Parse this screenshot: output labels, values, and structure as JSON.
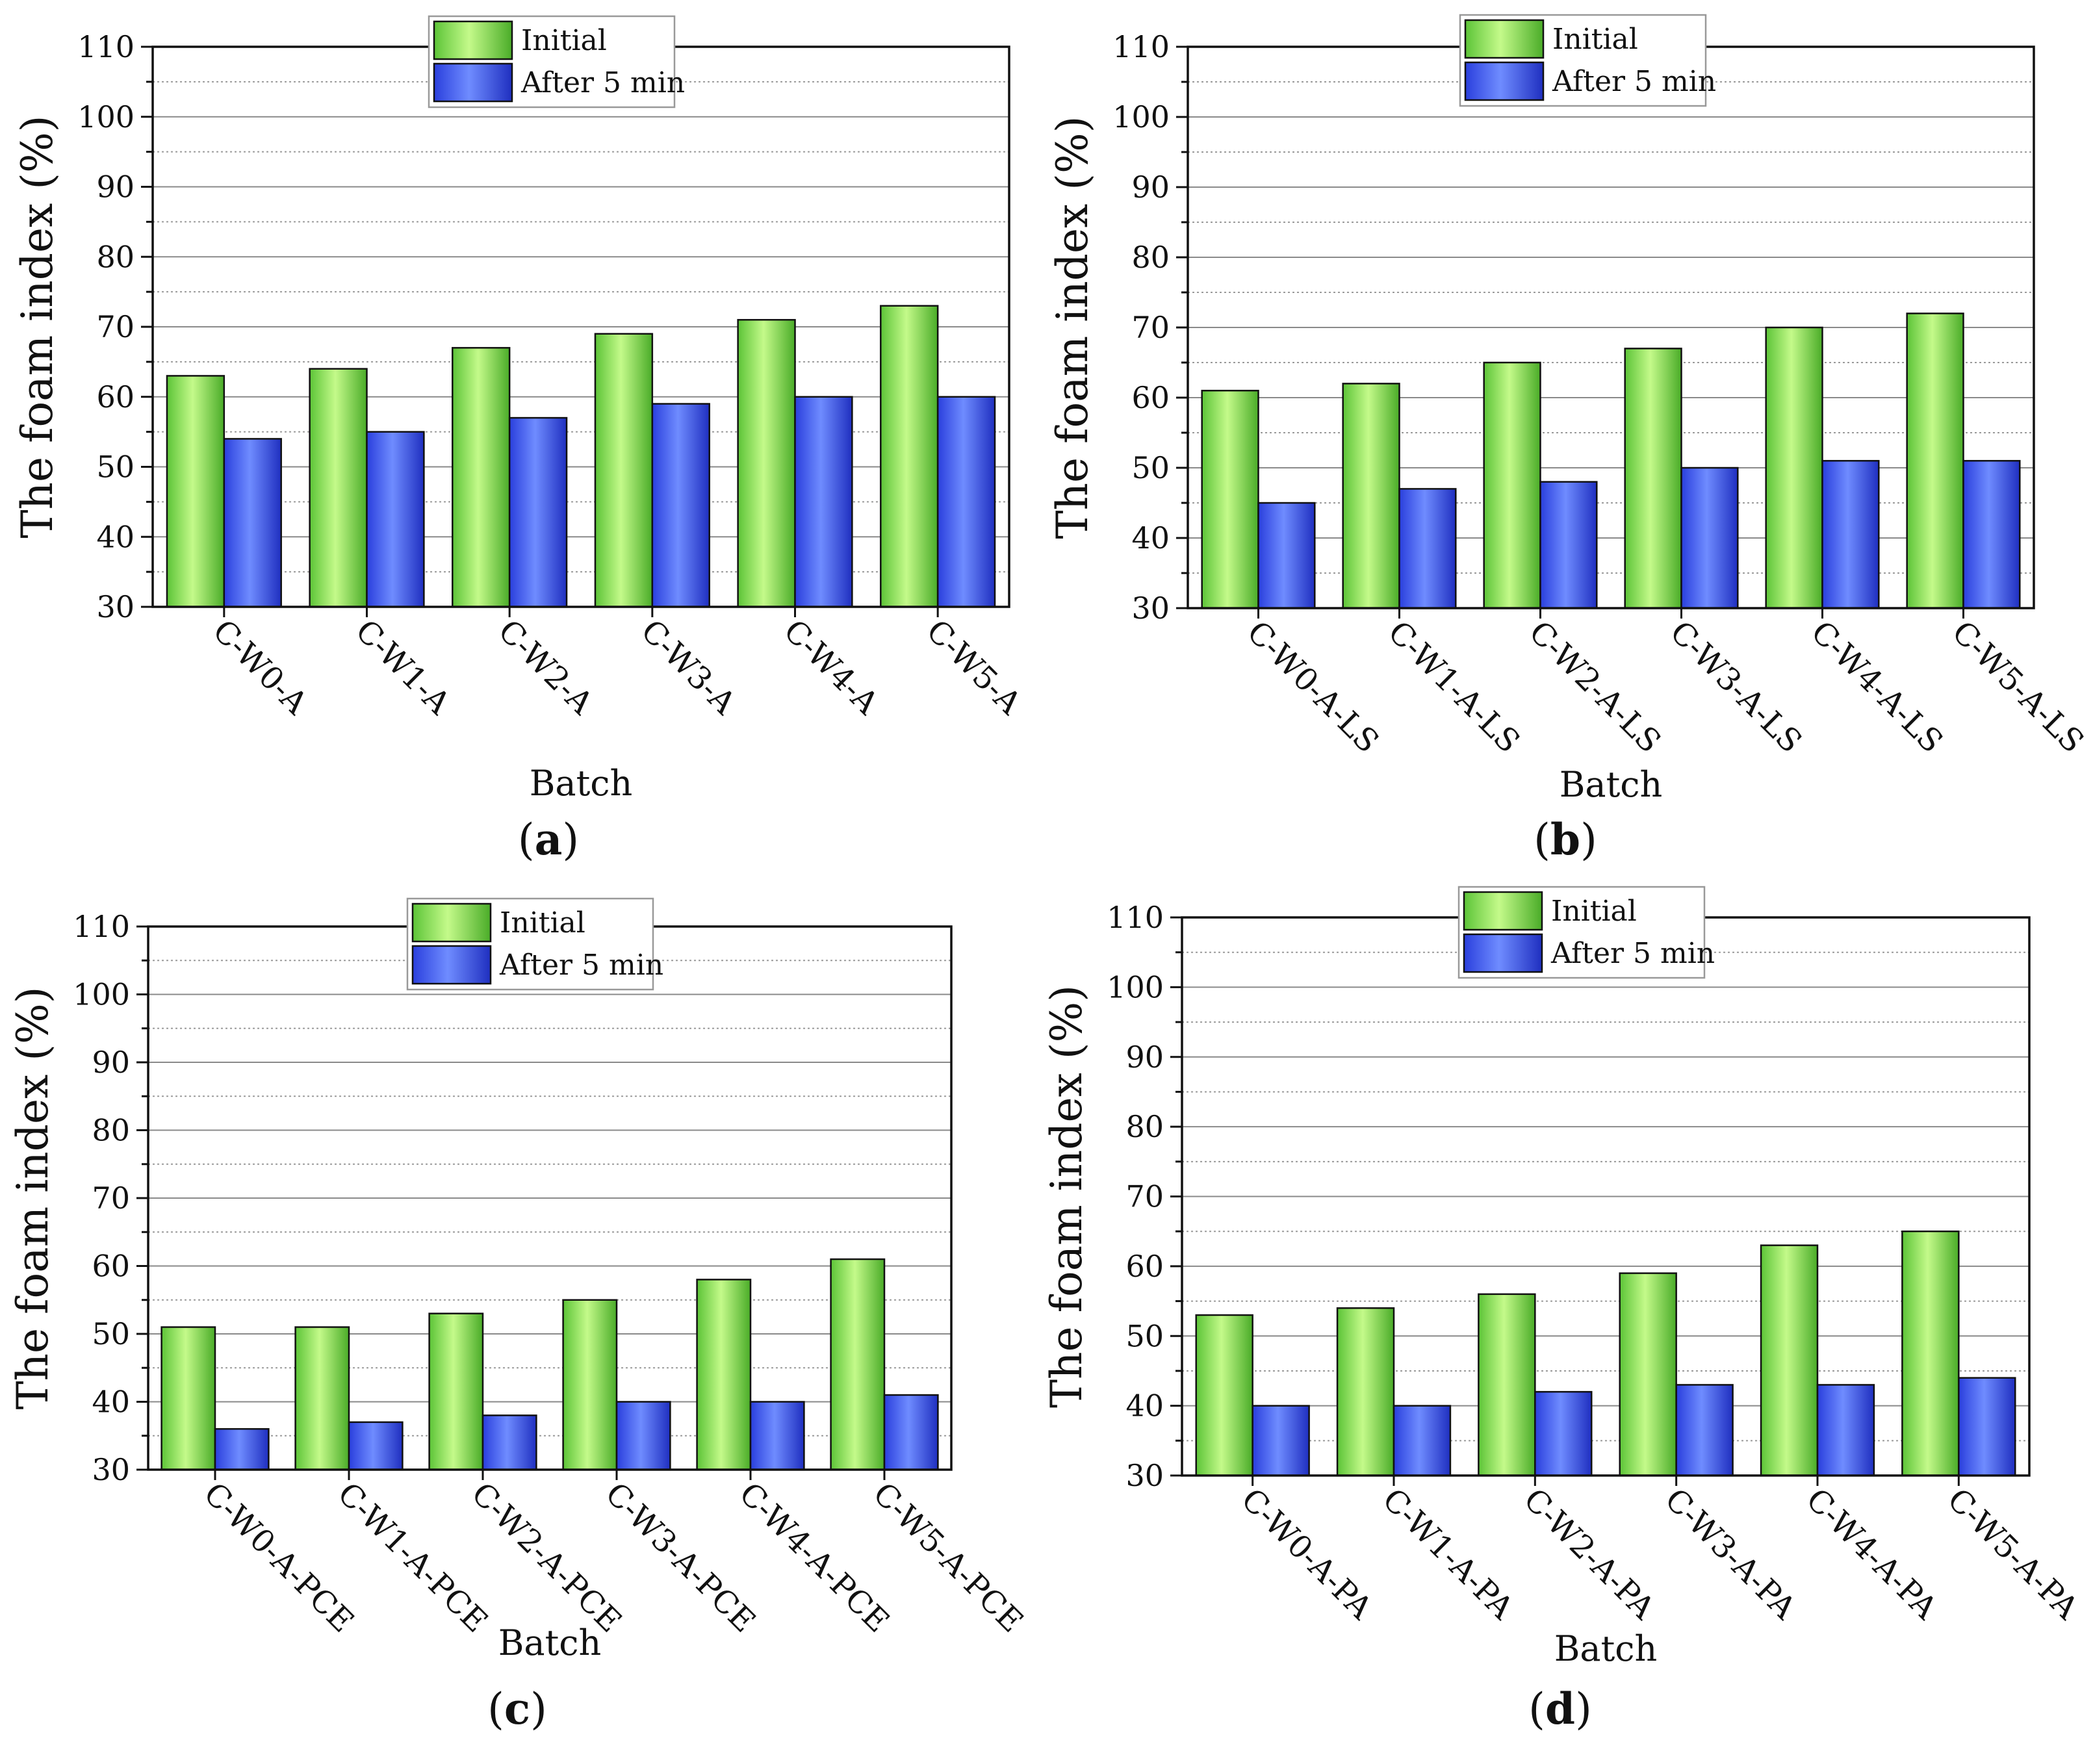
{
  "colors": {
    "initial": "#7ee04a",
    "after": "#3a55f0",
    "axis": "#111111",
    "grid_major": "#8a8a8a",
    "grid_minor": "#9a9a9a"
  },
  "chart_data": [
    {
      "type": "bar",
      "panel_label": "a",
      "categories": [
        "C-W0-A",
        "C-W1-A",
        "C-W2-A",
        "C-W3-A",
        "C-W4-A",
        "C-W5-A"
      ],
      "series": [
        {
          "name": "Initial",
          "values": [
            63,
            64,
            67,
            69,
            71,
            73
          ]
        },
        {
          "name": "After 5 min",
          "values": [
            54,
            55,
            57,
            59,
            60,
            60
          ]
        }
      ],
      "xlabel": "Batch",
      "ylabel": "The foam index (%)",
      "ylim": [
        30,
        110
      ],
      "yticks": [
        30,
        40,
        50,
        60,
        70,
        80,
        90,
        100,
        110
      ],
      "grid": true,
      "legend": "top-center"
    },
    {
      "type": "bar",
      "panel_label": "b",
      "categories": [
        "C-W0-A-LS",
        "C-W1-A-LS",
        "C-W2-A-LS",
        "C-W3-A-LS",
        "C-W4-A-LS",
        "C-W5-A-LS"
      ],
      "series": [
        {
          "name": "Initial",
          "values": [
            61,
            62,
            65,
            67,
            70,
            72
          ]
        },
        {
          "name": "After 5 min",
          "values": [
            45,
            47,
            48,
            50,
            51,
            51
          ]
        }
      ],
      "xlabel": "Batch",
      "ylabel": "The foam index (%)",
      "ylim": [
        30,
        110
      ],
      "yticks": [
        30,
        40,
        50,
        60,
        70,
        80,
        90,
        100,
        110
      ],
      "grid": true,
      "legend": "top-center"
    },
    {
      "type": "bar",
      "panel_label": "c",
      "categories": [
        "C-W0-A-PCE",
        "C-W1-A-PCE",
        "C-W2-A-PCE",
        "C-W3-A-PCE",
        "C-W4-A-PCE",
        "C-W5-A-PCE"
      ],
      "series": [
        {
          "name": "Initial",
          "values": [
            51,
            51,
            53,
            55,
            58,
            61
          ]
        },
        {
          "name": "After 5 min",
          "values": [
            36,
            37,
            38,
            40,
            40,
            41
          ]
        }
      ],
      "xlabel": "Batch",
      "ylabel": "The foam index (%)",
      "ylim": [
        30,
        110
      ],
      "yticks": [
        30,
        40,
        50,
        60,
        70,
        80,
        90,
        100,
        110
      ],
      "grid": true,
      "legend": "top-center"
    },
    {
      "type": "bar",
      "panel_label": "d",
      "categories": [
        "C-W0-A-PA",
        "C-W1-A-PA",
        "C-W2-A-PA",
        "C-W3-A-PA",
        "C-W4-A-PA",
        "C-W5-A-PA"
      ],
      "series": [
        {
          "name": "Initial",
          "values": [
            53,
            54,
            56,
            59,
            63,
            65
          ]
        },
        {
          "name": "After 5 min",
          "values": [
            40,
            40,
            42,
            43,
            43,
            44
          ]
        }
      ],
      "xlabel": "Batch",
      "ylabel": "The foam index (%)",
      "ylim": [
        30,
        110
      ],
      "yticks": [
        30,
        40,
        50,
        60,
        70,
        80,
        90,
        100,
        110
      ],
      "grid": true,
      "legend": "top-center"
    }
  ]
}
